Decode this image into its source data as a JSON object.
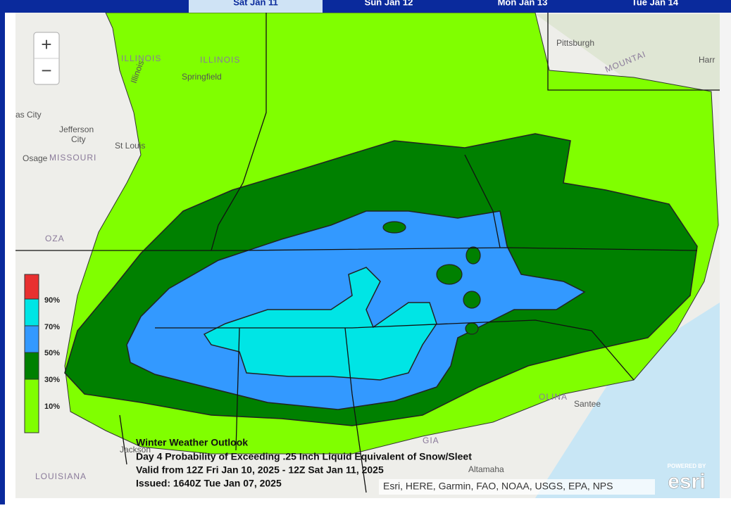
{
  "tabs": [
    "Sat Jan 11",
    "Sun Jan 12",
    "Mon Jan 13",
    "Tue Jan 14"
  ],
  "zoom": {
    "in": "+",
    "out": "−"
  },
  "places": [
    {
      "label": "ILLINOIS"
    },
    {
      "label": "ILLINOIS"
    },
    {
      "label": "Springfield"
    },
    {
      "label": "Pittsburgh"
    },
    {
      "label": "Harr"
    },
    {
      "label": "as City"
    },
    {
      "label": "Jefferson"
    },
    {
      "label": "City"
    },
    {
      "label": "St Louis"
    },
    {
      "label": "MISSOURI"
    },
    {
      "label": "Osage"
    },
    {
      "label": "OZA"
    },
    {
      "label": "LOUISIANA"
    },
    {
      "label": "Jackson"
    },
    {
      "label": "GIA"
    },
    {
      "label": "OLINA"
    },
    {
      "label": "Santee"
    },
    {
      "label": "Altamaha"
    },
    {
      "label": "MOUNTAI"
    },
    {
      "label": "Illinois"
    }
  ],
  "legend": [
    "90%",
    "70%",
    "50%",
    "30%",
    "10%"
  ],
  "caption": {
    "title": "Winter Weather Outlook",
    "product": "Day 4 Probability of Exceeding .25 Inch Liquid Equivalent of Snow/Sleet",
    "valid": "Valid from 12Z Fri Jan 10, 2025 - 12Z Sat Jan 11, 2025",
    "issued": "Issued: 1640Z Tue Jan 07, 2025"
  },
  "attribution": "Esri, HERE, Garmin, FAO, NOAA, USGS, EPA, NPS",
  "logo": {
    "powered": "POWERED BY",
    "name": "esri"
  }
}
